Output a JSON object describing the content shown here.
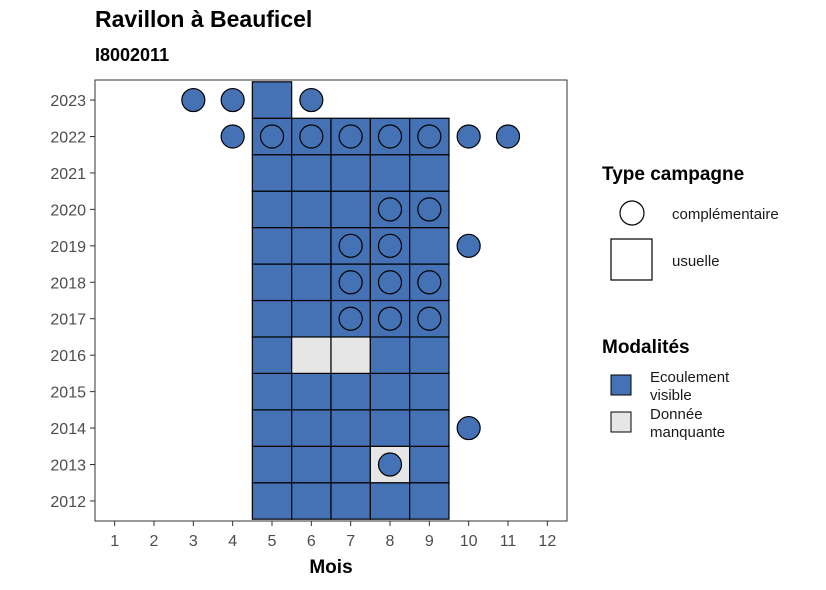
{
  "title": "Ravillon à Beauficel",
  "subtitle": "I8002011",
  "colors": {
    "ecoulement_visible": "#4472b4",
    "donnee_manquante": "#e6e6e6",
    "stroke": "#000000"
  },
  "chart_data": {
    "type": "heatmap",
    "xlabel": "Mois",
    "ylabel": "",
    "x_ticks": [
      1,
      2,
      3,
      4,
      5,
      6,
      7,
      8,
      9,
      10,
      11,
      12
    ],
    "y_ticks": [
      2012,
      2013,
      2014,
      2015,
      2016,
      2017,
      2018,
      2019,
      2020,
      2021,
      2022,
      2023
    ],
    "xlim": [
      0.5,
      12.5
    ],
    "ylim": [
      2011.45,
      2023.55
    ],
    "legend_position": "right",
    "legend": {
      "type_title": "Type campagne",
      "type_items": [
        {
          "label": "complémentaire",
          "shape": "circle"
        },
        {
          "label": "usuelle",
          "shape": "square"
        }
      ],
      "modalites_title": "Modalités",
      "modalites_items": [
        {
          "label_lines": [
            "Ecoulement",
            "visible"
          ],
          "color": "#4472b4"
        },
        {
          "label_lines": [
            "Donnée",
            "manquante"
          ],
          "color": "#e6e6e6"
        }
      ]
    },
    "usuelle": [
      {
        "year": 2012,
        "month": 5,
        "status": "Ecoulement visible"
      },
      {
        "year": 2012,
        "month": 6,
        "status": "Ecoulement visible"
      },
      {
        "year": 2012,
        "month": 7,
        "status": "Ecoulement visible"
      },
      {
        "year": 2012,
        "month": 8,
        "status": "Ecoulement visible"
      },
      {
        "year": 2012,
        "month": 9,
        "status": "Ecoulement visible"
      },
      {
        "year": 2013,
        "month": 5,
        "status": "Ecoulement visible"
      },
      {
        "year": 2013,
        "month": 6,
        "status": "Ecoulement visible"
      },
      {
        "year": 2013,
        "month": 7,
        "status": "Ecoulement visible"
      },
      {
        "year": 2013,
        "month": 8,
        "status": "Donnée manquante"
      },
      {
        "year": 2013,
        "month": 9,
        "status": "Ecoulement visible"
      },
      {
        "year": 2014,
        "month": 5,
        "status": "Ecoulement visible"
      },
      {
        "year": 2014,
        "month": 6,
        "status": "Ecoulement visible"
      },
      {
        "year": 2014,
        "month": 7,
        "status": "Ecoulement visible"
      },
      {
        "year": 2014,
        "month": 8,
        "status": "Ecoulement visible"
      },
      {
        "year": 2014,
        "month": 9,
        "status": "Ecoulement visible"
      },
      {
        "year": 2015,
        "month": 5,
        "status": "Ecoulement visible"
      },
      {
        "year": 2015,
        "month": 6,
        "status": "Ecoulement visible"
      },
      {
        "year": 2015,
        "month": 7,
        "status": "Ecoulement visible"
      },
      {
        "year": 2015,
        "month": 8,
        "status": "Ecoulement visible"
      },
      {
        "year": 2015,
        "month": 9,
        "status": "Ecoulement visible"
      },
      {
        "year": 2016,
        "month": 5,
        "status": "Ecoulement visible"
      },
      {
        "year": 2016,
        "month": 6,
        "status": "Donnée manquante"
      },
      {
        "year": 2016,
        "month": 7,
        "status": "Donnée manquante"
      },
      {
        "year": 2016,
        "month": 8,
        "status": "Ecoulement visible"
      },
      {
        "year": 2016,
        "month": 9,
        "status": "Ecoulement visible"
      },
      {
        "year": 2017,
        "month": 5,
        "status": "Ecoulement visible"
      },
      {
        "year": 2017,
        "month": 6,
        "status": "Ecoulement visible"
      },
      {
        "year": 2017,
        "month": 7,
        "status": "Ecoulement visible"
      },
      {
        "year": 2017,
        "month": 8,
        "status": "Ecoulement visible"
      },
      {
        "year": 2017,
        "month": 9,
        "status": "Ecoulement visible"
      },
      {
        "year": 2018,
        "month": 5,
        "status": "Ecoulement visible"
      },
      {
        "year": 2018,
        "month": 6,
        "status": "Ecoulement visible"
      },
      {
        "year": 2018,
        "month": 7,
        "status": "Ecoulement visible"
      },
      {
        "year": 2018,
        "month": 8,
        "status": "Ecoulement visible"
      },
      {
        "year": 2018,
        "month": 9,
        "status": "Ecoulement visible"
      },
      {
        "year": 2019,
        "month": 5,
        "status": "Ecoulement visible"
      },
      {
        "year": 2019,
        "month": 6,
        "status": "Ecoulement visible"
      },
      {
        "year": 2019,
        "month": 7,
        "status": "Ecoulement visible"
      },
      {
        "year": 2019,
        "month": 8,
        "status": "Ecoulement visible"
      },
      {
        "year": 2019,
        "month": 9,
        "status": "Ecoulement visible"
      },
      {
        "year": 2020,
        "month": 5,
        "status": "Ecoulement visible"
      },
      {
        "year": 2020,
        "month": 6,
        "status": "Ecoulement visible"
      },
      {
        "year": 2020,
        "month": 7,
        "status": "Ecoulement visible"
      },
      {
        "year": 2020,
        "month": 8,
        "status": "Ecoulement visible"
      },
      {
        "year": 2020,
        "month": 9,
        "status": "Ecoulement visible"
      },
      {
        "year": 2021,
        "month": 5,
        "status": "Ecoulement visible"
      },
      {
        "year": 2021,
        "month": 6,
        "status": "Ecoulement visible"
      },
      {
        "year": 2021,
        "month": 7,
        "status": "Ecoulement visible"
      },
      {
        "year": 2021,
        "month": 8,
        "status": "Ecoulement visible"
      },
      {
        "year": 2021,
        "month": 9,
        "status": "Ecoulement visible"
      },
      {
        "year": 2022,
        "month": 5,
        "status": "Ecoulement visible"
      },
      {
        "year": 2022,
        "month": 6,
        "status": "Ecoulement visible"
      },
      {
        "year": 2022,
        "month": 7,
        "status": "Ecoulement visible"
      },
      {
        "year": 2022,
        "month": 8,
        "status": "Ecoulement visible"
      },
      {
        "year": 2022,
        "month": 9,
        "status": "Ecoulement visible"
      },
      {
        "year": 2023,
        "month": 5,
        "status": "Ecoulement visible"
      }
    ],
    "complementaire": [
      {
        "year": 2013,
        "month": 8,
        "status": "Ecoulement visible"
      },
      {
        "year": 2014,
        "month": 10,
        "status": "Ecoulement visible"
      },
      {
        "year": 2017,
        "month": 7,
        "status": "Ecoulement visible"
      },
      {
        "year": 2017,
        "month": 8,
        "status": "Ecoulement visible"
      },
      {
        "year": 2017,
        "month": 9,
        "status": "Ecoulement visible"
      },
      {
        "year": 2018,
        "month": 7,
        "status": "Ecoulement visible"
      },
      {
        "year": 2018,
        "month": 8,
        "status": "Ecoulement visible"
      },
      {
        "year": 2018,
        "month": 9,
        "status": "Ecoulement visible"
      },
      {
        "year": 2019,
        "month": 7,
        "status": "Ecoulement visible"
      },
      {
        "year": 2019,
        "month": 8,
        "status": "Ecoulement visible"
      },
      {
        "year": 2019,
        "month": 10,
        "status": "Ecoulement visible"
      },
      {
        "year": 2020,
        "month": 8,
        "status": "Ecoulement visible"
      },
      {
        "year": 2020,
        "month": 9,
        "status": "Ecoulement visible"
      },
      {
        "year": 2022,
        "month": 4,
        "status": "Ecoulement visible"
      },
      {
        "year": 2022,
        "month": 5,
        "status": "Ecoulement visible"
      },
      {
        "year": 2022,
        "month": 6,
        "status": "Ecoulement visible"
      },
      {
        "year": 2022,
        "month": 7,
        "status": "Ecoulement visible"
      },
      {
        "year": 2022,
        "month": 8,
        "status": "Ecoulement visible"
      },
      {
        "year": 2022,
        "month": 9,
        "status": "Ecoulement visible"
      },
      {
        "year": 2022,
        "month": 10,
        "status": "Ecoulement visible"
      },
      {
        "year": 2022,
        "month": 11,
        "status": "Ecoulement visible"
      },
      {
        "year": 2023,
        "month": 3,
        "status": "Ecoulement visible"
      },
      {
        "year": 2023,
        "month": 4,
        "status": "Ecoulement visible"
      },
      {
        "year": 2023,
        "month": 6,
        "status": "Ecoulement visible"
      }
    ]
  }
}
